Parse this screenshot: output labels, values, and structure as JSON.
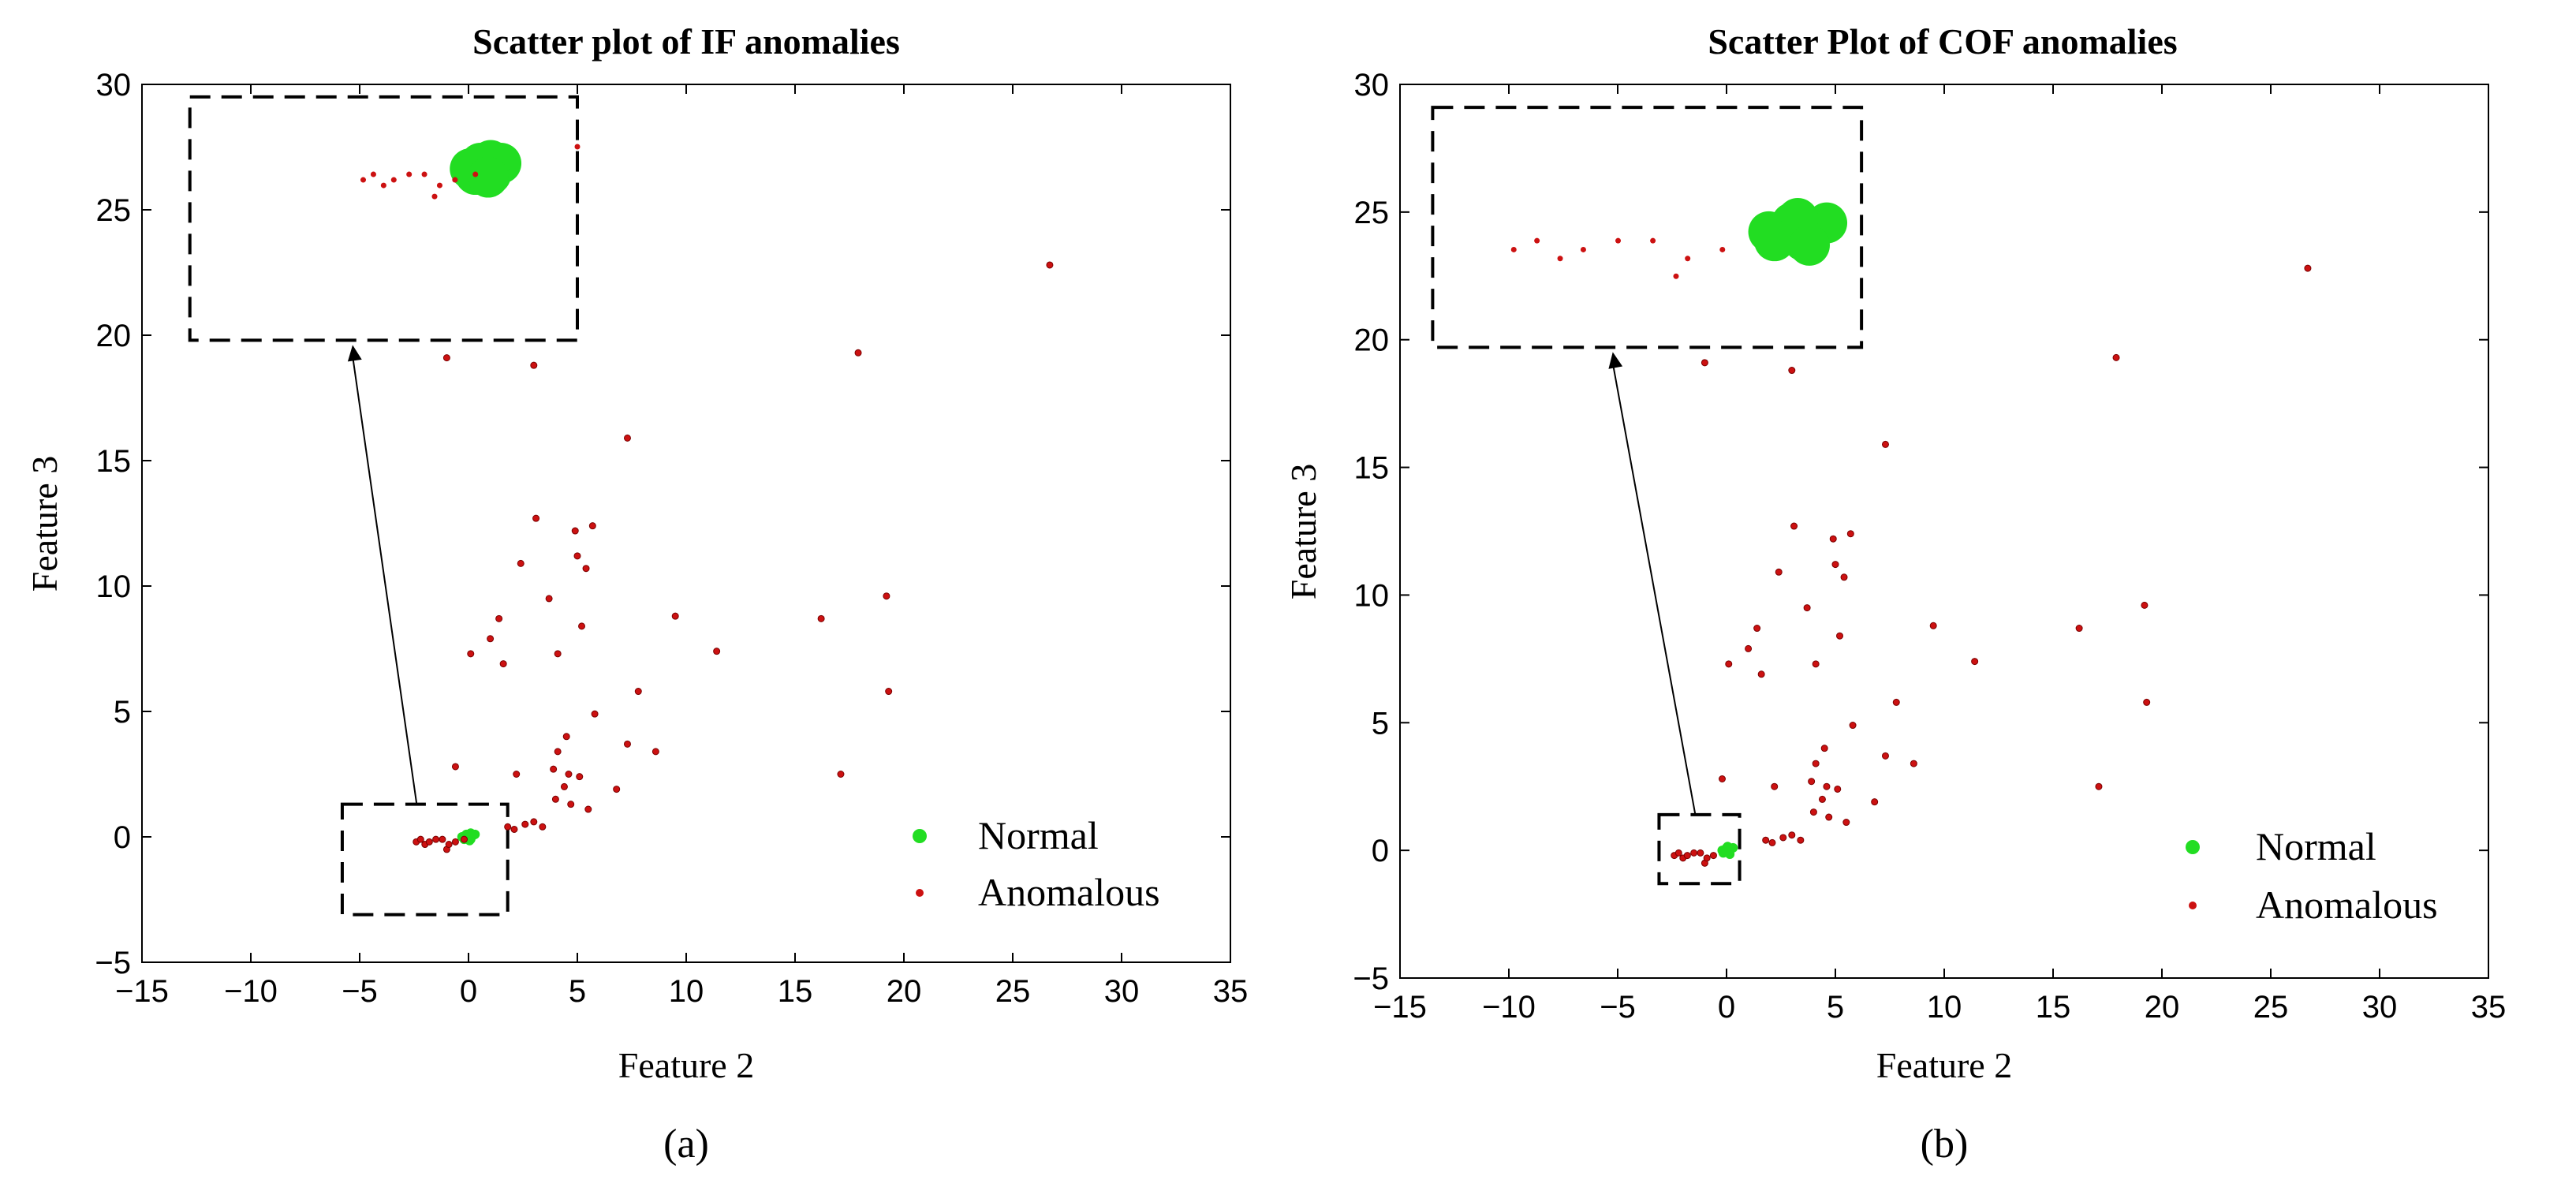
{
  "chart_data": [
    {
      "type": "scatter",
      "caption": "(a)",
      "title": "Scatter plot of IF anomalies",
      "xlabel": "Feature 2",
      "ylabel": "Feature 3",
      "xlim": [
        -15,
        35
      ],
      "ylim": [
        -5,
        30
      ],
      "xticks": [
        -15,
        -10,
        -5,
        0,
        5,
        10,
        15,
        20,
        25,
        30,
        35
      ],
      "yticks": [
        -5,
        0,
        5,
        10,
        15,
        20,
        25,
        30
      ],
      "xtick_labels": [
        "−15",
        "−10",
        "−5",
        "0",
        "5",
        "10",
        "15",
        "20",
        "25",
        "30",
        "35"
      ],
      "ytick_labels": [
        "−5",
        "0",
        "5",
        "10",
        "15",
        "20",
        "25",
        "30"
      ],
      "legend": {
        "position": "bottom-right",
        "entries": [
          "Normal",
          "Anomalous"
        ]
      },
      "colors": {
        "Normal": "#22dd22",
        "Anomalous": "#cc1111"
      },
      "series": [
        {
          "name": "Normal",
          "points": [
            [
              -0.3,
              0.0
            ],
            [
              -0.1,
              0.1
            ],
            [
              0.1,
              -0.1
            ],
            [
              0.2,
              0.05
            ],
            [
              0.0,
              -0.05
            ],
            [
              -0.2,
              -0.1
            ],
            [
              0.3,
              0.1
            ],
            [
              0.1,
              0.15
            ],
            [
              -0.15,
              0.05
            ],
            [
              0.05,
              -0.15
            ]
          ]
        },
        {
          "name": "Anomalous",
          "points": [
            [
              26.7,
              22.8
            ],
            [
              17.9,
              19.3
            ],
            [
              3.0,
              18.8
            ],
            [
              -1.0,
              19.1
            ],
            [
              7.3,
              15.9
            ],
            [
              3.1,
              12.7
            ],
            [
              4.9,
              12.2
            ],
            [
              5.7,
              12.4
            ],
            [
              5.0,
              11.2
            ],
            [
              2.4,
              10.9
            ],
            [
              5.4,
              10.7
            ],
            [
              3.7,
              9.5
            ],
            [
              19.2,
              9.6
            ],
            [
              9.5,
              8.8
            ],
            [
              16.2,
              8.7
            ],
            [
              1.4,
              8.7
            ],
            [
              5.2,
              8.4
            ],
            [
              1.0,
              7.9
            ],
            [
              11.4,
              7.4
            ],
            [
              4.1,
              7.3
            ],
            [
              0.1,
              7.3
            ],
            [
              1.6,
              6.9
            ],
            [
              7.8,
              5.8
            ],
            [
              19.3,
              5.8
            ],
            [
              5.8,
              4.9
            ],
            [
              4.5,
              4.0
            ],
            [
              7.3,
              3.7
            ],
            [
              4.1,
              3.4
            ],
            [
              8.6,
              3.4
            ],
            [
              -0.6,
              2.8
            ],
            [
              2.2,
              2.5
            ],
            [
              3.9,
              2.7
            ],
            [
              4.6,
              2.5
            ],
            [
              5.1,
              2.4
            ],
            [
              4.4,
              2.0
            ],
            [
              17.1,
              2.5
            ],
            [
              4.0,
              1.5
            ],
            [
              4.7,
              1.3
            ],
            [
              5.5,
              1.1
            ],
            [
              6.8,
              1.9
            ],
            [
              3.0,
              0.6
            ],
            [
              2.6,
              0.5
            ],
            [
              3.4,
              0.4
            ],
            [
              2.1,
              0.3
            ],
            [
              1.8,
              0.4
            ],
            [
              -1.5,
              -0.1
            ],
            [
              -2.4,
              -0.2
            ],
            [
              -2.0,
              -0.3
            ],
            [
              -1.0,
              -0.5
            ],
            [
              -0.6,
              -0.2
            ],
            [
              -0.2,
              -0.1
            ],
            [
              -0.9,
              -0.3
            ],
            [
              -2.2,
              -0.1
            ],
            [
              -1.8,
              -0.2
            ],
            [
              -1.2,
              -0.1
            ]
          ]
        }
      ],
      "inset": {
        "source_box": {
          "x": [
            -5.8,
            1.8
          ],
          "y": [
            -3.1,
            1.3
          ]
        },
        "display_box": {
          "x": [
            -12.8,
            5.0
          ],
          "y": [
            19.8,
            29.5
          ]
        }
      }
    },
    {
      "type": "scatter",
      "caption": "(b)",
      "title": "Scatter Plot of COF anomalies",
      "xlabel": "Feature 2",
      "ylabel": "Feature 3",
      "xlim": [
        -15,
        35
      ],
      "ylim": [
        -5,
        30
      ],
      "xticks": [
        -15,
        -10,
        -5,
        0,
        5,
        10,
        15,
        20,
        25,
        30,
        35
      ],
      "yticks": [
        -5,
        0,
        5,
        10,
        15,
        20,
        25,
        30
      ],
      "xtick_labels": [
        "−15",
        "−10",
        "−5",
        "0",
        "5",
        "10",
        "15",
        "20",
        "25",
        "30",
        "35"
      ],
      "ytick_labels": [
        "−5",
        "0",
        "5",
        "10",
        "15",
        "20",
        "25",
        "30"
      ],
      "legend": {
        "position": "bottom-right",
        "entries": [
          "Normal",
          "Anomalous"
        ]
      },
      "colors": {
        "Normal": "#22dd22",
        "Anomalous": "#cc1111"
      },
      "series": [
        {
          "name": "Normal",
          "points": [
            [
              -0.2,
              0.0
            ],
            [
              0.0,
              0.1
            ],
            [
              0.1,
              -0.1
            ],
            [
              0.2,
              0.05
            ],
            [
              -0.1,
              -0.05
            ],
            [
              0.3,
              0.1
            ],
            [
              0.05,
              0.15
            ],
            [
              -0.15,
              -0.1
            ],
            [
              0.15,
              -0.15
            ]
          ]
        },
        {
          "name": "Anomalous",
          "points": [
            [
              26.7,
              22.8
            ],
            [
              17.9,
              19.3
            ],
            [
              3.0,
              18.8
            ],
            [
              -1.0,
              19.1
            ],
            [
              7.3,
              15.9
            ],
            [
              3.1,
              12.7
            ],
            [
              4.9,
              12.2
            ],
            [
              5.7,
              12.4
            ],
            [
              5.0,
              11.2
            ],
            [
              2.4,
              10.9
            ],
            [
              5.4,
              10.7
            ],
            [
              3.7,
              9.5
            ],
            [
              19.2,
              9.6
            ],
            [
              9.5,
              8.8
            ],
            [
              16.2,
              8.7
            ],
            [
              1.4,
              8.7
            ],
            [
              5.2,
              8.4
            ],
            [
              1.0,
              7.9
            ],
            [
              11.4,
              7.4
            ],
            [
              4.1,
              7.3
            ],
            [
              0.1,
              7.3
            ],
            [
              1.6,
              6.9
            ],
            [
              7.8,
              5.8
            ],
            [
              19.3,
              5.8
            ],
            [
              5.8,
              4.9
            ],
            [
              4.5,
              4.0
            ],
            [
              7.3,
              3.7
            ],
            [
              4.1,
              3.4
            ],
            [
              8.6,
              3.4
            ],
            [
              -0.2,
              2.8
            ],
            [
              2.2,
              2.5
            ],
            [
              3.9,
              2.7
            ],
            [
              4.6,
              2.5
            ],
            [
              5.1,
              2.4
            ],
            [
              4.4,
              2.0
            ],
            [
              17.1,
              2.5
            ],
            [
              4.0,
              1.5
            ],
            [
              4.7,
              1.3
            ],
            [
              5.5,
              1.1
            ],
            [
              6.8,
              1.9
            ],
            [
              3.0,
              0.6
            ],
            [
              2.6,
              0.5
            ],
            [
              3.4,
              0.4
            ],
            [
              2.1,
              0.3
            ],
            [
              1.8,
              0.4
            ],
            [
              -1.5,
              -0.1
            ],
            [
              -2.4,
              -0.2
            ],
            [
              -2.0,
              -0.3
            ],
            [
              -1.0,
              -0.5
            ],
            [
              -0.6,
              -0.2
            ],
            [
              -0.9,
              -0.3
            ],
            [
              -2.2,
              -0.1
            ],
            [
              -1.8,
              -0.2
            ],
            [
              -1.2,
              -0.1
            ]
          ]
        }
      ],
      "inset": {
        "source_box": {
          "x": [
            -3.1,
            0.6
          ],
          "y": [
            -1.3,
            1.4
          ]
        },
        "display_box": {
          "x": [
            -13.5,
            6.2
          ],
          "y": [
            19.7,
            29.1
          ]
        }
      }
    }
  ]
}
